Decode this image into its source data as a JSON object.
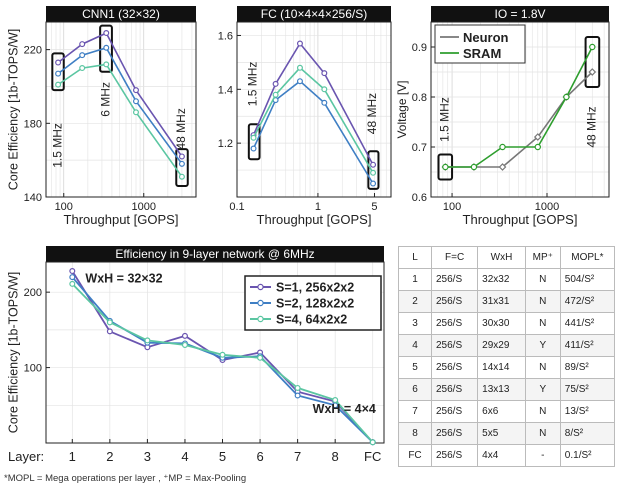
{
  "chart_data": [
    {
      "type": "line",
      "title": "CNN1 (32×32)",
      "xlabel": "Throughput [GOPS]",
      "ylabel": "Core Efficiency [1b-TOPS/W]",
      "xscale": "log",
      "xlim": [
        60,
        4500
      ],
      "ylim": [
        140,
        235
      ],
      "xticks": [
        {
          "v": 100,
          "label": "100"
        },
        {
          "v": 1000,
          "label": "1000"
        }
      ],
      "yticks": [
        140,
        180,
        220
      ],
      "grid": true,
      "series": [
        {
          "color": "#6a55b0",
          "x": [
            85,
            170,
            340,
            800,
            3000
          ],
          "y": [
            213,
            223,
            229,
            198,
            162
          ]
        },
        {
          "color": "#3f7fc4",
          "x": [
            85,
            170,
            340,
            800,
            3000
          ],
          "y": [
            207,
            217,
            221,
            192,
            158
          ]
        },
        {
          "color": "#5bc6a2",
          "x": [
            85,
            170,
            340,
            800,
            3000
          ],
          "y": [
            201,
            210,
            212,
            186,
            151
          ]
        }
      ],
      "annotations": [
        {
          "text": "1.5 MHz",
          "x": 85,
          "y": 168,
          "rotate": -90
        },
        {
          "text": "6 MHz",
          "x": 340,
          "y": 193,
          "rotate": -90
        },
        {
          "text": "48 MHz",
          "x": 3000,
          "y": 177,
          "rotate": -90
        }
      ],
      "boxes": [
        {
          "x": [
            72,
            100
          ],
          "y": [
            198,
            218
          ]
        },
        {
          "x": [
            285,
            400
          ],
          "y": [
            208,
            233
          ]
        },
        {
          "x": [
            2550,
            3550
          ],
          "y": [
            146,
            166
          ]
        }
      ]
    },
    {
      "type": "line",
      "title": "FC (10×4×4×256/S)",
      "xlabel": "Throughput [GOPS]",
      "ylabel": "",
      "xscale": "log",
      "xlim": [
        0.1,
        8
      ],
      "ylim": [
        1.0,
        1.65
      ],
      "xticks": [
        {
          "v": 0.1,
          "label": "0.1"
        },
        {
          "v": 1,
          "label": "1"
        },
        {
          "v": 5,
          "label": "5"
        }
      ],
      "yticks": [
        1.2,
        1.4,
        1.6
      ],
      "grid": true,
      "series": [
        {
          "color": "#6a55b0",
          "x": [
            0.16,
            0.3,
            0.6,
            1.2,
            4.8
          ],
          "y": [
            1.23,
            1.42,
            1.57,
            1.46,
            1.12
          ]
        },
        {
          "color": "#3f7fc4",
          "x": [
            0.16,
            0.3,
            0.6,
            1.2,
            4.8
          ],
          "y": [
            1.18,
            1.36,
            1.43,
            1.35,
            1.05
          ]
        },
        {
          "color": "#5bc6a2",
          "x": [
            0.16,
            0.3,
            0.6,
            1.2,
            4.8
          ],
          "y": [
            1.22,
            1.38,
            1.48,
            1.4,
            1.09
          ]
        }
      ],
      "annotations": [
        {
          "text": "1.5 MHz",
          "x": 0.16,
          "y": 1.42,
          "rotate": -90
        },
        {
          "text": "48 MHz",
          "x": 4.8,
          "y": 1.31,
          "rotate": -90
        }
      ],
      "boxes": [
        {
          "x": [
            0.14,
            0.19
          ],
          "y": [
            1.14,
            1.27
          ]
        },
        {
          "x": [
            4.2,
            5.6
          ],
          "y": [
            1.03,
            1.17
          ]
        }
      ]
    },
    {
      "type": "line",
      "title": "IO = 1.8V",
      "xlabel": "Throughput [GOPS]",
      "ylabel": "Voltage [V]",
      "xscale": "log",
      "xlim": [
        60,
        4500
      ],
      "ylim": [
        0.6,
        0.95
      ],
      "xticks": [
        {
          "v": 100,
          "label": "100"
        },
        {
          "v": 1000,
          "label": "1000"
        }
      ],
      "yticks": [
        0.6,
        0.7,
        0.8,
        0.9
      ],
      "grid": true,
      "legend": "top-left",
      "series": [
        {
          "name": "Neuron",
          "color": "#777777",
          "x": [
            85,
            170,
            340,
            800,
            1600,
            3000
          ],
          "y": [
            0.66,
            0.66,
            0.66,
            0.72,
            0.8,
            0.85
          ]
        },
        {
          "name": "SRAM",
          "color": "#2e9e2e",
          "x": [
            85,
            170,
            340,
            800,
            1600,
            3000
          ],
          "y": [
            0.66,
            0.66,
            0.7,
            0.7,
            0.8,
            0.9
          ]
        }
      ],
      "annotations": [
        {
          "text": "1.5 MHz",
          "x": 85,
          "y": 0.755,
          "rotate": -90
        },
        {
          "text": "48 MHz",
          "x": 3000,
          "y": 0.74,
          "rotate": -90
        }
      ],
      "boxes": [
        {
          "x": [
            72,
            100
          ],
          "y": [
            0.635,
            0.685
          ]
        },
        {
          "x": [
            2550,
            3550
          ],
          "y": [
            0.82,
            0.92
          ]
        }
      ]
    },
    {
      "type": "line",
      "title": "Efficiency in 9-layer network @ 6MHz",
      "xlabel": "",
      "ylabel": "Core Efficiency [1b-TOPS/W]",
      "xscale": "linear",
      "xlim": [
        0.3,
        9.3
      ],
      "ylim": [
        0,
        240
      ],
      "categories": [
        "1",
        "2",
        "3",
        "4",
        "5",
        "6",
        "7",
        "8",
        "FC"
      ],
      "category_axis_label": "Layer:",
      "yticks": [
        100,
        200
      ],
      "grid": true,
      "legend": "top-right",
      "series": [
        {
          "name": "S=1, 256x2x2",
          "color": "#6a55b0",
          "y": [
            228,
            148,
            127,
            142,
            110,
            120,
            68,
            55,
            1
          ]
        },
        {
          "name": "S=2, 128x2x2",
          "color": "#3f7fc4",
          "y": [
            220,
            162,
            133,
            132,
            113,
            115,
            63,
            50,
            1
          ]
        },
        {
          "name": "S=4, 64x2x2",
          "color": "#5bc6a2",
          "y": [
            211,
            160,
            136,
            130,
            117,
            113,
            73,
            57,
            1
          ]
        }
      ],
      "annotations": [
        {
          "text": "WxH = 32×32",
          "x": 1.35,
          "y": 213
        },
        {
          "text": "WxH = 4×4",
          "x": 7.4,
          "y": 40
        }
      ]
    },
    {
      "type": "table",
      "columns": [
        "L",
        "F=C",
        "WxH",
        "MP⁺",
        "MOPL*"
      ],
      "rows": [
        [
          "1",
          "256/S",
          "32x32",
          "N",
          "504/S²"
        ],
        [
          "2",
          "256/S",
          "31x31",
          "N",
          "472/S²"
        ],
        [
          "3",
          "256/S",
          "30x30",
          "N",
          "441/S²"
        ],
        [
          "4",
          "256/S",
          "29x29",
          "Y",
          "411/S²"
        ],
        [
          "5",
          "256/S",
          "14x14",
          "N",
          "89/S²"
        ],
        [
          "6",
          "256/S",
          "13x13",
          "Y",
          "75/S²"
        ],
        [
          "7",
          "256/S",
          "6x6",
          "N",
          "13/S²"
        ],
        [
          "8",
          "256/S",
          "5x5",
          "N",
          "8/S²"
        ],
        [
          "FC",
          "256/S",
          "4x4",
          "-",
          "0.1/S²"
        ]
      ]
    }
  ],
  "footnote": "*MOPL = Mega operations per layer ,  ⁺MP = Max-Pooling"
}
